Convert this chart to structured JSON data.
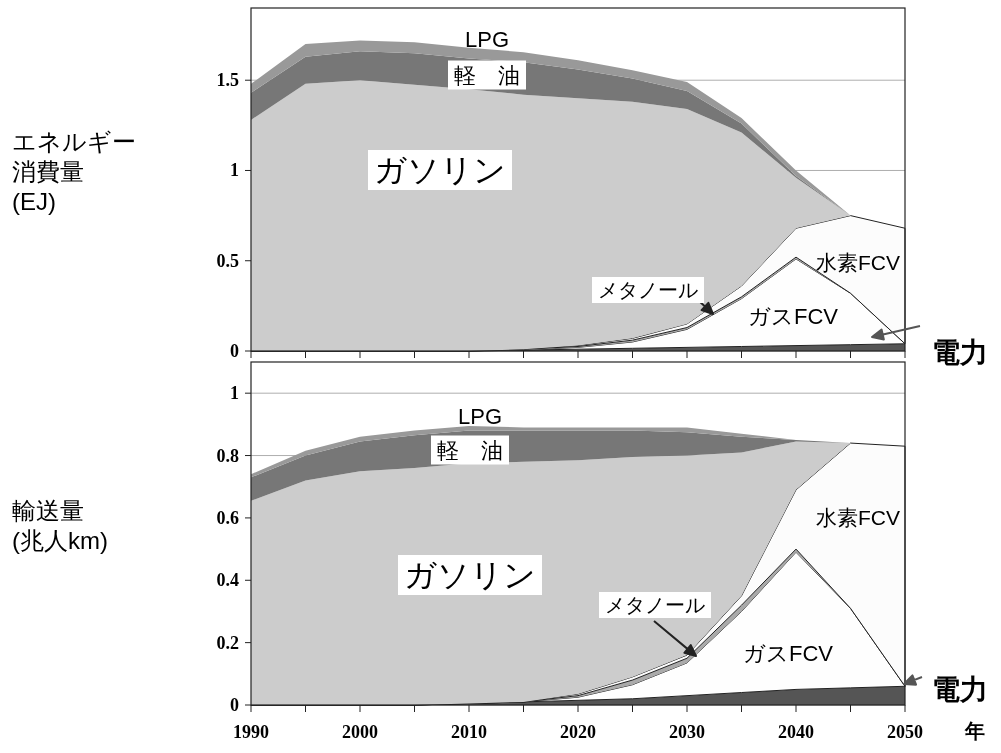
{
  "chart_data": [
    {
      "type": "area",
      "stacked": true,
      "ylabel": "エネルギー消費量(EJ)",
      "x": [
        1990,
        1995,
        2000,
        2005,
        2010,
        2015,
        2020,
        2025,
        2030,
        2035,
        2040,
        2045,
        2050
      ],
      "xlim": [
        1990,
        2050
      ],
      "ylim": [
        0,
        1.9
      ],
      "yticks": [
        0,
        0.5,
        1,
        1.5
      ],
      "xticks": [
        1990,
        {
          "value": 1995,
          "label": null
        },
        2000,
        {
          "value": 2005,
          "label": null
        },
        2010,
        {
          "value": 2015,
          "label": null
        },
        2020,
        {
          "value": 2025,
          "label": null
        },
        2030,
        {
          "value": 2035,
          "label": null
        },
        2040,
        {
          "value": 2045,
          "label": null
        },
        2050
      ],
      "tick_labels": "y",
      "grid": "y",
      "series": [
        {
          "name": "電力",
          "color": "#555555",
          "values": [
            0,
            0,
            0,
            0,
            0,
            0.005,
            0.01,
            0.015,
            0.02,
            0.025,
            0.03,
            0.035,
            0.04
          ]
        },
        {
          "name": "ガスFCV",
          "color": "#fefefe",
          "values": [
            0,
            0,
            0,
            0,
            0,
            0,
            0.01,
            0.035,
            0.1,
            0.265,
            0.48,
            0.285,
            0
          ]
        },
        {
          "name": "メタノール",
          "color": "#aaaaaa",
          "values": [
            0,
            0,
            0,
            0,
            0,
            0.005,
            0.005,
            0.01,
            0.01,
            0.01,
            0.01,
            0,
            0
          ]
        },
        {
          "name": "水素FCV",
          "color": "#fcfcfc",
          "values": [
            0,
            0,
            0,
            0,
            0,
            0,
            0.005,
            0.01,
            0.02,
            0.06,
            0.16,
            0.43,
            0.64
          ]
        },
        {
          "name": "ガソリン",
          "color": "#cccccc",
          "values": [
            1.28,
            1.48,
            1.5,
            1.475,
            1.45,
            1.41,
            1.37,
            1.31,
            1.19,
            0.85,
            0.28,
            0,
            0
          ]
        },
        {
          "name": "軽　油",
          "color": "#777777",
          "values": [
            0.15,
            0.15,
            0.16,
            0.175,
            0.17,
            0.18,
            0.16,
            0.13,
            0.1,
            0.05,
            0.01,
            0,
            0
          ]
        },
        {
          "name": "LPG",
          "color": "#999999",
          "values": [
            0.05,
            0.07,
            0.06,
            0.06,
            0.06,
            0.055,
            0.05,
            0.045,
            0.05,
            0.03,
            0.03,
            0,
            0
          ]
        }
      ]
    },
    {
      "type": "area",
      "stacked": true,
      "ylabel": "輸送量(兆人km)",
      "xlabel": "年",
      "x": [
        1990,
        1995,
        2000,
        2005,
        2010,
        2015,
        2020,
        2025,
        2030,
        2035,
        2040,
        2045,
        2050
      ],
      "xlim": [
        1990,
        2050
      ],
      "ylim": [
        0,
        1.1
      ],
      "yticks": [
        0,
        0.2,
        0.4,
        0.6,
        0.8,
        1
      ],
      "xticks": [
        1990,
        {
          "value": 1995,
          "label": null
        },
        2000,
        {
          "value": 2005,
          "label": null
        },
        2010,
        {
          "value": 2015,
          "label": null
        },
        2020,
        {
          "value": 2025,
          "label": null
        },
        2030,
        {
          "value": 2035,
          "label": null
        },
        2040,
        {
          "value": 2045,
          "label": null
        },
        2050
      ],
      "grid": "y",
      "series": [
        {
          "name": "電力",
          "color": "#555555",
          "values": [
            0,
            0,
            0,
            0,
            0.005,
            0.01,
            0.015,
            0.02,
            0.03,
            0.04,
            0.05,
            0.055,
            0.06
          ]
        },
        {
          "name": "ガスFCV",
          "color": "#fefefe",
          "values": [
            0,
            0,
            0,
            0,
            0,
            0,
            0.01,
            0.045,
            0.105,
            0.26,
            0.44,
            0.255,
            0
          ]
        },
        {
          "name": "メタノール",
          "color": "#aaaaaa",
          "values": [
            0,
            0,
            0,
            0,
            0,
            0,
            0.005,
            0.015,
            0.015,
            0.02,
            0.01,
            0,
            0
          ]
        },
        {
          "name": "水素FCV",
          "color": "#fcfcfc",
          "values": [
            0,
            0,
            0,
            0,
            0,
            0,
            0.005,
            0.01,
            0.01,
            0.03,
            0.19,
            0.53,
            0.77
          ]
        },
        {
          "name": "ガソリン",
          "color": "#cccccc",
          "values": [
            0.655,
            0.72,
            0.75,
            0.76,
            0.77,
            0.77,
            0.75,
            0.705,
            0.64,
            0.46,
            0.155,
            0,
            0
          ]
        },
        {
          "name": "軽　油",
          "color": "#777777",
          "values": [
            0.075,
            0.08,
            0.095,
            0.105,
            0.105,
            0.1,
            0.095,
            0.085,
            0.075,
            0.05,
            0.005,
            0,
            0
          ]
        },
        {
          "name": "LPG",
          "color": "#999999",
          "values": [
            0.01,
            0.015,
            0.015,
            0.015,
            0.015,
            0.01,
            0.01,
            0.01,
            0.015,
            0.01,
            0,
            0,
            0
          ]
        }
      ]
    }
  ]
}
